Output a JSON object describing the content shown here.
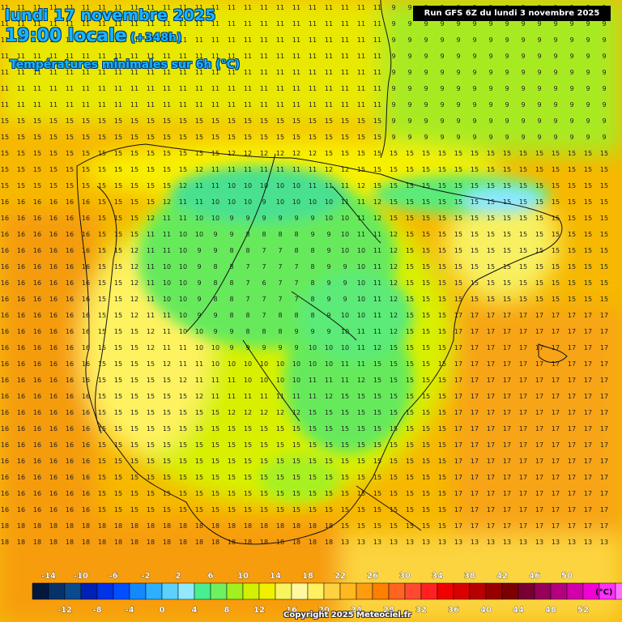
{
  "header": {
    "date": "lundi 17 novembre 2025",
    "time": "19:00 locale",
    "lead": "(+348h)",
    "subtitle": "Températures minimales sur 6h (°C)"
  },
  "run_info": "Run GFS 6Z du lundi 3 novembre 2025",
  "legend": {
    "unit": "(°C)",
    "top_labels": [
      "-14",
      "-10",
      "-6",
      "-2",
      "2",
      "6",
      "10",
      "14",
      "18",
      "22",
      "26",
      "30",
      "34",
      "38",
      "42",
      "46",
      "50"
    ],
    "bottom_labels": [
      "-12",
      "-8",
      "-4",
      "0",
      "4",
      "8",
      "12",
      "16",
      "20",
      "24",
      "28",
      "32",
      "36",
      "40",
      "44",
      "48",
      "52"
    ],
    "colors": [
      "#04183e",
      "#06326a",
      "#0a4a8e",
      "#0022b4",
      "#0032e6",
      "#0050ff",
      "#1488ff",
      "#2cb0ff",
      "#5cd0ff",
      "#92e8ff",
      "#48ee90",
      "#6ef060",
      "#a2f020",
      "#d2f000",
      "#f0f000",
      "#f8f460",
      "#fff8a0",
      "#fff060",
      "#ffd040",
      "#ffb820",
      "#ff9c10",
      "#ff8000",
      "#ff6420",
      "#ff4a30",
      "#ff2020",
      "#f00000",
      "#d80000",
      "#b80000",
      "#980000",
      "#7c0000",
      "#780030",
      "#960058",
      "#b40080",
      "#d200aa",
      "#f000d4",
      "#ff30ff",
      "#ff70ff",
      "#ffa8ff",
      "#ffd8ff",
      "#ffffff"
    ]
  },
  "copyright": "Copyright 2025 Meteociel.fr"
}
